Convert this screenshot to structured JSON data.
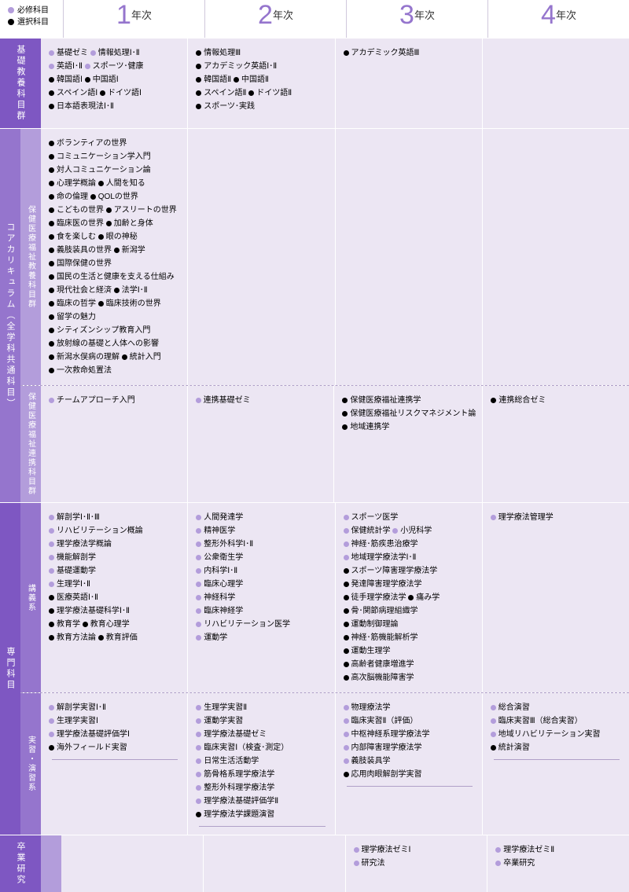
{
  "legend": {
    "required": "必修科目",
    "elective": "選択科目"
  },
  "years": [
    "1",
    "2",
    "3",
    "4"
  ],
  "year_suffix": "年次",
  "colors": {
    "accent_dark": "#7e57c2",
    "accent": "#9575cd",
    "accent_light": "#b39ddb",
    "bullet_req": "#b39ddb",
    "bullet_ele": "#000000",
    "bg_cell": "#ece6f3",
    "bg_cell_alt": "#f3eff8"
  },
  "sections": [
    {
      "outer": "基礎教養科目群",
      "outer_style": "dark",
      "no_sub": true,
      "rows": [
        {
          "cells": [
            [
              [
                "req",
                "基礎ゼミ",
                "req",
                "情報処理Ⅰ･Ⅱ"
              ],
              [
                "req",
                "英語Ⅰ･Ⅱ",
                "req",
                "スポーツ･健康"
              ],
              [
                "ele",
                "韓国語Ⅰ",
                "ele",
                "中国語Ⅰ"
              ],
              [
                "ele",
                "スペイン語Ⅰ",
                "ele",
                "ドイツ語Ⅰ"
              ],
              [
                "ele",
                "日本語表現法Ⅰ･Ⅱ"
              ]
            ],
            [
              [
                "ele",
                "情報処理Ⅲ"
              ],
              [
                "ele",
                "アカデミック英語Ⅰ･Ⅱ"
              ],
              [
                "ele",
                "韓国語Ⅱ",
                "ele",
                "中国語Ⅱ"
              ],
              [
                "ele",
                "スペイン語Ⅱ",
                "ele",
                "ドイツ語Ⅱ"
              ],
              [
                "ele",
                "スポーツ･実践"
              ]
            ],
            [
              [
                "ele",
                "アカデミック英語Ⅲ"
              ]
            ],
            []
          ]
        }
      ]
    },
    {
      "outer": "コアカリキュラム（全学科共通科目）",
      "outer_style": "mid",
      "subs": [
        {
          "sub": "保健医療福祉教養科目群",
          "cells": [
            [
              [
                "ele",
                "ボランティアの世界"
              ],
              [
                "ele",
                "コミュニケーション学入門"
              ],
              [
                "ele",
                "対人コミュニケーション論"
              ],
              [
                "ele",
                "心理学概論",
                "ele",
                "人間を知る"
              ],
              [
                "ele",
                "命の倫理",
                "ele",
                "QOLの世界"
              ],
              [
                "ele",
                "こどもの世界",
                "ele",
                "アスリートの世界"
              ],
              [
                "ele",
                "臨床医の世界",
                "ele",
                "加齢と身体"
              ],
              [
                "ele",
                "食を楽しむ",
                "ele",
                "眼の神秘"
              ],
              [
                "ele",
                "義肢装具の世界",
                "ele",
                "新潟学"
              ],
              [
                "ele",
                "国際保健の世界"
              ],
              [
                "ele",
                "国民の生活と健康を支える仕組み"
              ],
              [
                "ele",
                "現代社会と経済",
                "ele",
                "法学Ⅰ･Ⅱ"
              ],
              [
                "ele",
                "臨床の哲学",
                "ele",
                "臨床技術の世界"
              ],
              [
                "ele",
                "留学の魅力"
              ],
              [
                "ele",
                "シティズンシップ教育入門"
              ],
              [
                "ele",
                "放射線の基礎と人体への影響"
              ],
              [
                "ele",
                "新潟水俣病の理解",
                "ele",
                "統計入門"
              ],
              [
                "ele",
                "一次救命処置法"
              ]
            ],
            [],
            [],
            []
          ]
        },
        {
          "sub": "保健医療福祉連携科目群",
          "dash": true,
          "cells": [
            [
              [
                "req",
                "チームアプローチ入門"
              ]
            ],
            [
              [
                "req",
                "連携基礎ゼミ"
              ]
            ],
            [
              [
                "ele",
                "保健医療福祉連携学"
              ],
              [
                "ele",
                "保健医療福祉リスクマネジメント論"
              ],
              [
                "ele",
                "地域連携学"
              ]
            ],
            [
              [
                "ele",
                "連携総合ゼミ"
              ]
            ]
          ]
        }
      ]
    },
    {
      "outer": "専門科目",
      "outer_style": "dark",
      "subs": [
        {
          "sub": "講義系",
          "sub_style": "dark",
          "cells": [
            [
              [
                "req",
                "解剖学Ⅰ･Ⅱ･Ⅲ"
              ],
              [
                "req",
                "リハビリテーション概論"
              ],
              [
                "req",
                "理学療法学概論"
              ],
              [
                "req",
                "機能解剖学"
              ],
              [
                "req",
                "基礎運動学"
              ],
              [
                "req",
                "生理学Ⅰ･Ⅱ"
              ],
              [
                "ele",
                "医療英語Ⅰ･Ⅱ"
              ],
              [
                "ele",
                "理学療法基礎科学Ⅰ･Ⅱ"
              ],
              [
                "ele",
                "教育学",
                "ele",
                "教育心理学"
              ],
              [
                "ele",
                "教育方法論",
                "ele",
                "教育評価"
              ]
            ],
            [
              [
                "req",
                "人間発達学"
              ],
              [
                "req",
                "精神医学"
              ],
              [
                "req",
                "整形外科学Ⅰ･Ⅱ"
              ],
              [
                "req",
                "公衆衛生学"
              ],
              [
                "req",
                "内科学Ⅰ･Ⅱ"
              ],
              [
                "req",
                "臨床心理学"
              ],
              [
                "req",
                "神経科学"
              ],
              [
                "req",
                "臨床神経学"
              ],
              [
                "req",
                "リハビリテーション医学"
              ],
              [
                "req",
                "運動学"
              ]
            ],
            [
              [
                "req",
                "スポーツ医学"
              ],
              [
                "req",
                "保健統計学",
                "req",
                "小児科学"
              ],
              [
                "req",
                "神経･筋疾患治療学"
              ],
              [
                "req",
                "地域理学療法学Ⅰ･Ⅱ"
              ],
              [
                "ele",
                "スポーツ障害理学療法学"
              ],
              [
                "ele",
                "発達障害理学療法学"
              ],
              [
                "ele",
                "徒手理学療法学",
                "ele",
                "痛み学"
              ],
              [
                "ele",
                "骨･関節病理組織学"
              ],
              [
                "ele",
                "運動制御理論"
              ],
              [
                "ele",
                "神経･筋機能解析学"
              ],
              [
                "ele",
                "運動生理学"
              ],
              [
                "ele",
                "高齢者健康増進学"
              ],
              [
                "ele",
                "高次脳機能障害学"
              ]
            ],
            [
              [
                "req",
                "理学療法管理学"
              ]
            ]
          ]
        },
        {
          "sub": "実習・演習系",
          "sub_style": "dark",
          "dash": true,
          "cells": [
            [
              [
                "req",
                "解剖学実習Ⅰ･Ⅱ"
              ],
              [
                "req",
                "生理学実習Ⅰ"
              ],
              [
                "req",
                "理学療法基礎評価学Ⅰ"
              ],
              [
                "ele",
                "海外フィールド実習"
              ]
            ],
            [
              [
                "req",
                "生理学実習Ⅱ"
              ],
              [
                "req",
                "運動学実習"
              ],
              [
                "req",
                "理学療法基礎ゼミ"
              ],
              [
                "req",
                "臨床実習Ⅰ（検査･測定）"
              ],
              [
                "req",
                "日常生活活動学"
              ],
              [
                "req",
                "筋骨格系理学療法学"
              ],
              [
                "req",
                "整形外科理学療法学"
              ],
              [
                "req",
                "理学療法基礎評価学Ⅱ"
              ],
              [
                "ele",
                "理学療法学課題演習"
              ]
            ],
            [
              [
                "req",
                "物理療法学"
              ],
              [
                "req",
                "臨床実習Ⅱ（評価）"
              ],
              [
                "req",
                "中枢神経系理学療法学"
              ],
              [
                "req",
                "内部障害理学療法学"
              ],
              [
                "req",
                "義肢装具学"
              ],
              [
                "ele",
                "応用肉眼解剖学実習"
              ]
            ],
            [
              [
                "req",
                "総合演習"
              ],
              [
                "req",
                "臨床実習Ⅲ（総合実習）"
              ],
              [
                "req",
                "地域リハビリテーション実習"
              ],
              [
                "ele",
                "統計演習"
              ]
            ]
          ],
          "footerline": true
        }
      ]
    },
    {
      "outer": "卒業研究",
      "outer_style": "dark",
      "no_sub": true,
      "pad_sub": true,
      "rows": [
        {
          "cells": [
            [],
            [],
            [
              [
                "req",
                "理学療法ゼミⅠ"
              ],
              [
                "req",
                "研究法"
              ]
            ],
            [
              [
                "req",
                "理学療法ゼミⅡ"
              ],
              [
                "req",
                "卒業研究"
              ]
            ]
          ]
        }
      ]
    }
  ]
}
